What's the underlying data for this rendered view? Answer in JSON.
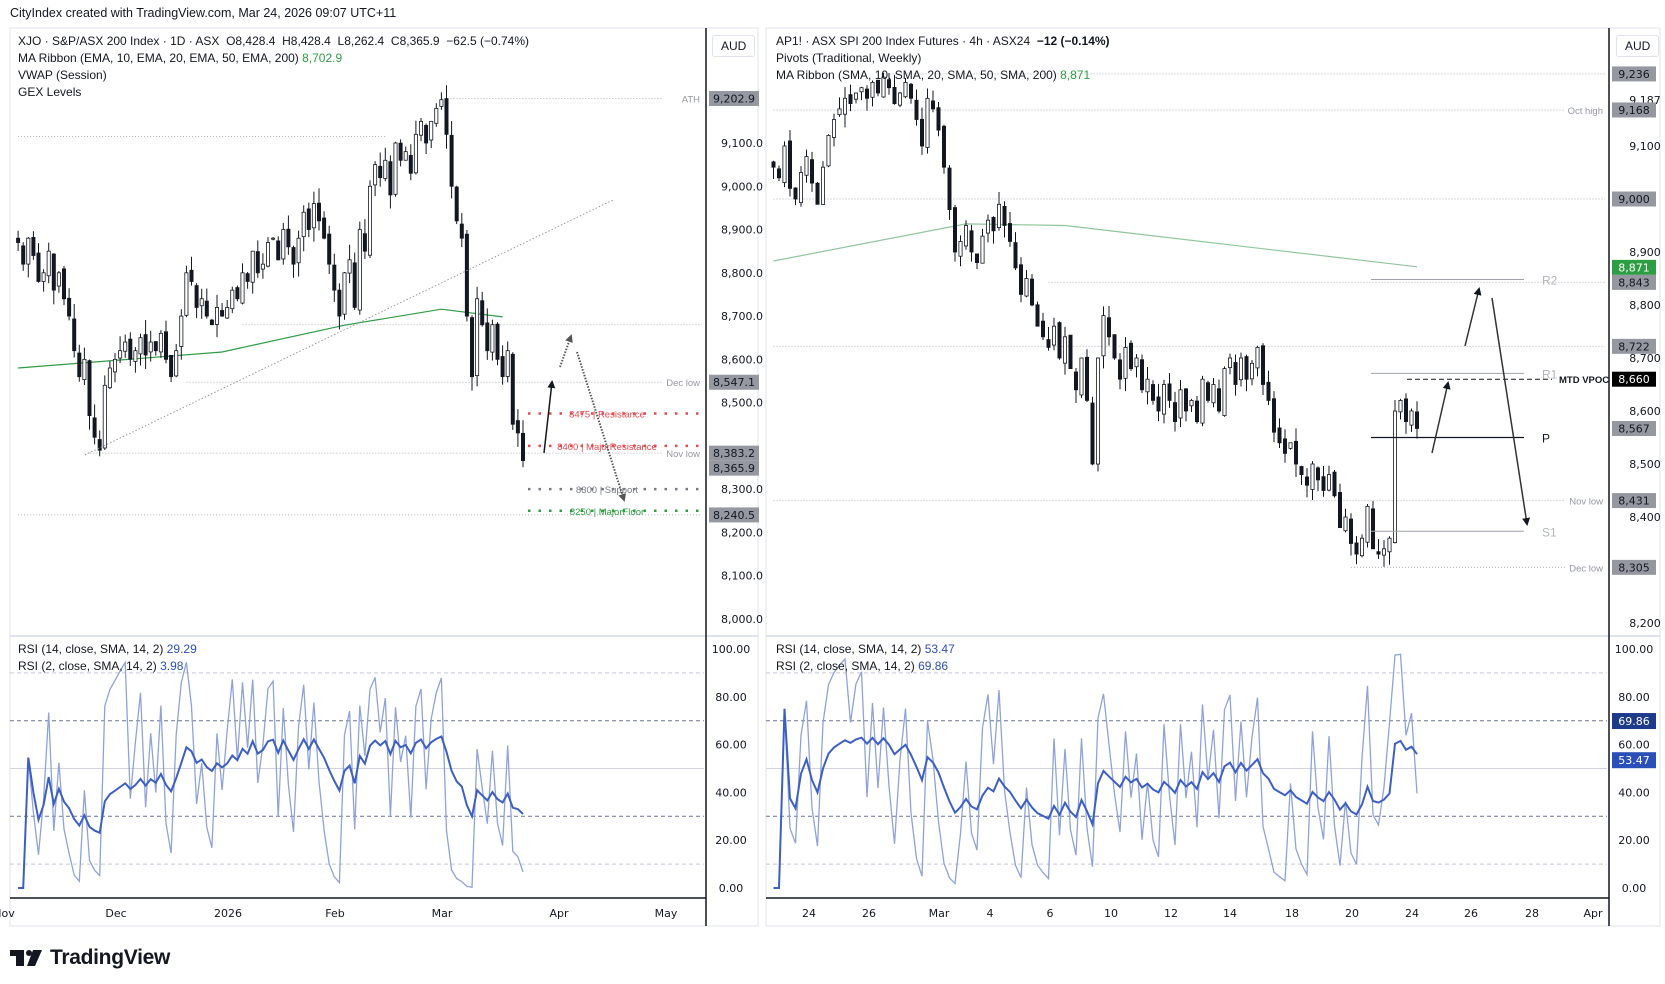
{
  "header": {
    "attribution": "CityIndex created with TradingView.com, Mar 24, 2026 09:07 UTC+11"
  },
  "left": {
    "legend": {
      "symbol": "XJO · S&P/ASX 200 Index · 1D · ASX",
      "open": "O8,428.4",
      "high": "H8,428.4",
      "low": "L8,262.4",
      "close": "C8,365.9",
      "change": "−62.5 (−0.74%)",
      "ma_ribbon": "MA Ribbon (EMA, 10, EMA, 20, EMA, 50, EMA, 200)",
      "ma_value": "8,702.9",
      "vwap": "VWAP (Session)",
      "gex": "GEX Levels"
    },
    "currency": "AUD",
    "rsi_legend": {
      "rsi14": "RSI (14, close, SMA, 14, 2)",
      "rsi14_value": "29.29",
      "rsi2": "RSI (2, close, SMA, 14, 2)",
      "rsi2_value": "3.98"
    },
    "price_ticks": [
      "9,100.0",
      "9,000.0",
      "8,900.0",
      "8,800.0",
      "8,700.0",
      "8,600.0",
      "8,500.0",
      "8,300.0",
      "8,200.0",
      "8,100.0",
      "8,000.0"
    ],
    "price_tick_values": [
      9100,
      9000,
      8900,
      8800,
      8700,
      8600,
      8500,
      8300,
      8200,
      8100,
      8000
    ],
    "price_badges": [
      {
        "value": 9202.9,
        "text": "9,202.9"
      },
      {
        "value": 8547.1,
        "text": "8,547.1"
      },
      {
        "value": 8383.2,
        "text": "8,383.2"
      },
      {
        "value": 8365.9,
        "text": "8,365.9"
      },
      {
        "value": 8240.5,
        "text": "8,240.5"
      }
    ],
    "rsi_ticks": [
      "100.00",
      "80.00",
      "60.00",
      "40.00",
      "20.00",
      "0.00"
    ],
    "x_labels": [
      "Nov",
      "Dec",
      "2026",
      "Feb",
      "Mar",
      "Apr",
      "May"
    ],
    "levels": [
      {
        "label": "ATH",
        "value": 9202.9,
        "from_bar": 83
      },
      {
        "label": "",
        "value": 9115,
        "from_bar": 0,
        "to_bar": 72
      },
      {
        "label": "",
        "value": 8680,
        "from_bar": 44
      },
      {
        "label": "Dec low",
        "value": 8547.1,
        "from_bar": 33
      },
      {
        "label": "Nov low",
        "value": 8383.2,
        "from_bar": 13
      },
      {
        "label": "",
        "value": 8240.5,
        "from_bar": 0
      }
    ],
    "gex_levels": [
      {
        "value": 8475,
        "label": "8475 | Resistance",
        "color": "#e5484d"
      },
      {
        "value": 8400,
        "label": "8400 | MajorResistance",
        "color": "#e5484d"
      },
      {
        "value": 8300,
        "label": "8300 | Support",
        "color": "#787b86"
      },
      {
        "value": 8250,
        "label": "8250 | MajorFloor",
        "color": "#2e9e44"
      }
    ]
  },
  "right": {
    "legend": {
      "symbol": "AP1! · ASX SPI 200 Index Futures · 4h · ASX24",
      "change": "−12 (−0.14%)",
      "pivots": "Pivots (Traditional, Weekly)",
      "ma_ribbon": "MA Ribbon (SMA, 10, SMA, 20, SMA, 50, SMA, 200)",
      "ma_value": "8,871"
    },
    "currency": "AUD",
    "rsi_legend": {
      "rsi14": "RSI (14, close, SMA, 14, 2)",
      "rsi14_value": "53.47",
      "rsi2": "RSI (2, close, SMA, 14, 2)",
      "rsi2_value": "69.86"
    },
    "price_ticks": [
      "9,187",
      "9,100",
      "8,900",
      "8,800",
      "8,700",
      "8,600",
      "8,500",
      "8,400",
      "8,200"
    ],
    "price_tick_values": [
      9187,
      9100,
      8900,
      8800,
      8700,
      8600,
      8500,
      8400,
      8200
    ],
    "price_badges": [
      {
        "value": 9236,
        "text": "9,236",
        "kind": "grey"
      },
      {
        "value": 9168,
        "text": "9,168",
        "kind": "grey"
      },
      {
        "value": 9000,
        "text": "9,000",
        "kind": "grey"
      },
      {
        "value": 8871,
        "text": "8,871",
        "kind": "green"
      },
      {
        "value": 8843,
        "text": "8,843",
        "kind": "grey"
      },
      {
        "value": 8722,
        "text": "8,722",
        "kind": "grey"
      },
      {
        "value": 8660,
        "text": "8,660",
        "kind": "black"
      },
      {
        "value": 8567,
        "text": "8,567",
        "kind": "grey"
      },
      {
        "value": 8431,
        "text": "8,431",
        "kind": "grey"
      },
      {
        "value": 8305,
        "text": "8,305",
        "kind": "grey"
      }
    ],
    "rsi_ticks": [
      "100.00",
      "80.00",
      "60.00",
      "40.00",
      "20.00",
      "0.00"
    ],
    "rsi_badges": [
      {
        "value": 69.86,
        "text": "69.86",
        "color": "#1e3a8a"
      },
      {
        "value": 53.47,
        "text": "53.47",
        "color": "#2a4fb8"
      }
    ],
    "x_labels": [
      "24",
      "26",
      "Mar",
      "4",
      "6",
      "10",
      "12",
      "14",
      "18",
      "20",
      "24",
      "26",
      "28",
      "Apr"
    ],
    "levels": [
      {
        "label": "",
        "value": 9236,
        "from_bar": 20
      },
      {
        "label": "Oct high",
        "value": 9168,
        "from_bar": 0
      },
      {
        "label": "",
        "value": 9000,
        "from_bar": 0
      },
      {
        "label": "",
        "value": 8843,
        "from_bar": 50
      },
      {
        "label": "",
        "value": 8722,
        "from_bar": 0
      },
      {
        "label": "Nov low",
        "value": 8431,
        "from_bar": 0
      },
      {
        "label": "Dec low",
        "value": 8305,
        "from_bar": 105
      }
    ],
    "pivots": [
      {
        "label": "R2",
        "value": 8848
      },
      {
        "label": "R1",
        "value": 8671
      },
      {
        "label": "P",
        "value": 8550
      },
      {
        "label": "S1",
        "value": 8373
      }
    ],
    "vpoc": {
      "label": "MTD VPOC",
      "value": 8660
    }
  },
  "colors": {
    "up_body": "#ffffff",
    "down_body": "#131722",
    "ema200": "#2e9e44",
    "sma200": "#8fc79a",
    "rsi14": "#3d5fc4",
    "rsi2": "#8fa3d9"
  },
  "chart_data": [
    {
      "type": "candlestick",
      "title": "XJO · S&P/ASX 200 Index · 1D · ASX",
      "x_range": [
        "Nov",
        "May"
      ],
      "ylim": [
        8000,
        9250
      ],
      "closes_approx": [
        8870,
        8820,
        8880,
        8840,
        8780,
        8800,
        8850,
        8760,
        8800,
        8740,
        8700,
        8620,
        8560,
        8600,
        8470,
        8420,
        8390,
        8540,
        8580,
        8600,
        8620,
        8640,
        8600,
        8620,
        8650,
        8610,
        8640,
        8620,
        8660,
        8600,
        8560,
        8620,
        8700,
        8800,
        8780,
        8720,
        8740,
        8700,
        8680,
        8720,
        8700,
        8720,
        8760,
        8740,
        8800,
        8780,
        8850,
        8800,
        8820,
        8870,
        8880,
        8830,
        8900,
        8860,
        8820,
        8880,
        8940,
        8900,
        8960,
        8920,
        8880,
        8820,
        8760,
        8700,
        8800,
        8830,
        8720,
        8900,
        8850,
        9000,
        9050,
        9020,
        9060,
        8980,
        9100,
        9060,
        9080,
        9030,
        9120,
        9150,
        9100,
        9150,
        9180,
        9200,
        9120,
        9000,
        8920,
        8880,
        8700,
        8560,
        8740,
        8680,
        8620,
        8680,
        8600,
        8560,
        8620,
        8450,
        8430,
        8366
      ],
      "ema200_points": [
        {
          "bar": 0,
          "value": 8580
        },
        {
          "bar": 40,
          "value": 8617
        },
        {
          "bar": 64,
          "value": 8679
        },
        {
          "bar": 83,
          "value": 8716
        },
        {
          "bar": 95,
          "value": 8698
        }
      ],
      "rsi_ylim": [
        0,
        100
      ]
    },
    {
      "type": "candlestick",
      "title": "AP1! · ASX SPI 200 Index Futures · 4h · ASX24",
      "x_range": [
        "Feb 23",
        "Apr"
      ],
      "ylim": [
        8150,
        9260
      ],
      "closes_approx": [
        9060,
        9040,
        9100,
        9020,
        9000,
        9050,
        9080,
        9030,
        8990,
        9060,
        9120,
        9150,
        9170,
        9190,
        9180,
        9200,
        9210,
        9190,
        9220,
        9200,
        9230,
        9210,
        9180,
        9200,
        9220,
        9190,
        9150,
        9100,
        9190,
        9170,
        9130,
        9060,
        8980,
        8900,
        8920,
        8950,
        8900,
        8880,
        8930,
        8960,
        8940,
        8990,
        8950,
        8920,
        8870,
        8820,
        8850,
        8800,
        8760,
        8740,
        8720,
        8760,
        8700,
        8740,
        8680,
        8640,
        8700,
        8620,
        8500,
        8700,
        8780,
        8740,
        8700,
        8660,
        8720,
        8680,
        8700,
        8640,
        8660,
        8620,
        8600,
        8650,
        8620,
        8580,
        8640,
        8600,
        8620,
        8580,
        8660,
        8620,
        8650,
        8600,
        8680,
        8700,
        8650,
        8700,
        8660,
        8690,
        8720,
        8650,
        8620,
        8560,
        8540,
        8520,
        8540,
        8500,
        8480,
        8460,
        8500,
        8470,
        8450,
        8480,
        8440,
        8380,
        8400,
        8350,
        8330,
        8360,
        8420,
        8340,
        8330,
        8340,
        8360,
        8600,
        8620,
        8580,
        8600,
        8567
      ],
      "sma200_points": [
        {
          "bar": 0,
          "value": 8883
        },
        {
          "bar": 35,
          "value": 8953
        },
        {
          "bar": 53,
          "value": 8950
        },
        {
          "bar": 117,
          "value": 8872
        }
      ],
      "rsi_ylim": [
        0,
        100
      ]
    }
  ],
  "footer": {
    "brand": "TradingView"
  }
}
